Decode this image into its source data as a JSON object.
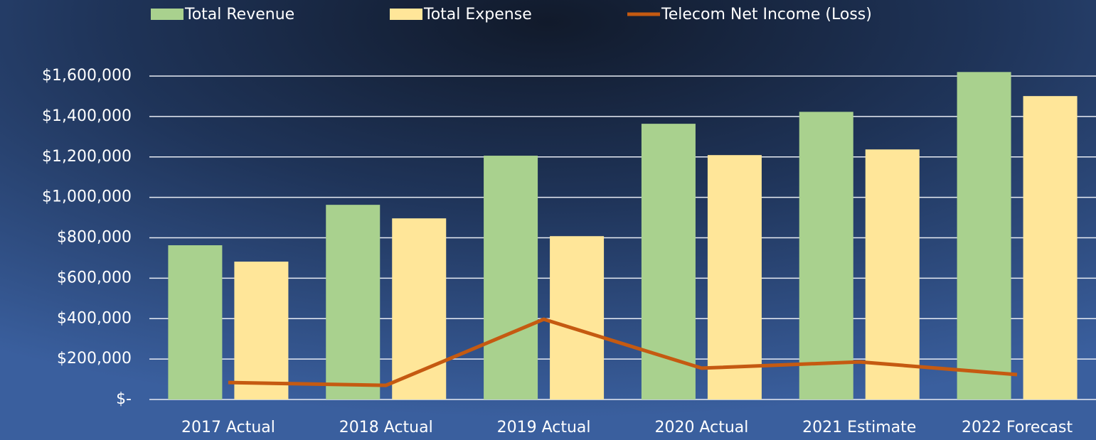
{
  "chart_data": {
    "type": "bar",
    "categories": [
      "2017 Actual",
      "2018 Actual",
      "2019 Actual",
      "2020 Actual",
      "2021 Estimate",
      "2022 Forecast"
    ],
    "series": [
      {
        "name": "Total Revenue",
        "color": "#a9d18e",
        "values": [
          763000,
          963000,
          1206000,
          1364000,
          1423000,
          1620000
        ]
      },
      {
        "name": "Total Expense",
        "color": "#ffe699",
        "values": [
          682000,
          896000,
          808000,
          1209000,
          1237000,
          1501000
        ]
      },
      {
        "name": "Telecom Net Income (Loss)",
        "color": "#c55a11",
        "type": "line",
        "values": [
          84000,
          70000,
          397000,
          155000,
          186000,
          123000
        ]
      }
    ],
    "ylim": [
      0,
      1600000
    ],
    "yticks": [
      {
        "value": 0,
        "label": "$-"
      },
      {
        "value": 200000,
        "label": "$200,000"
      },
      {
        "value": 400000,
        "label": "$400,000"
      },
      {
        "value": 600000,
        "label": "$600,000"
      },
      {
        "value": 800000,
        "label": "$800,000"
      },
      {
        "value": 1000000,
        "label": "$1,000,000"
      },
      {
        "value": 1200000,
        "label": "$1,200,000"
      },
      {
        "value": 1400000,
        "label": "$1,400,000"
      },
      {
        "value": 1600000,
        "label": "$1,600,000"
      }
    ],
    "grid": true,
    "legend": "top"
  }
}
